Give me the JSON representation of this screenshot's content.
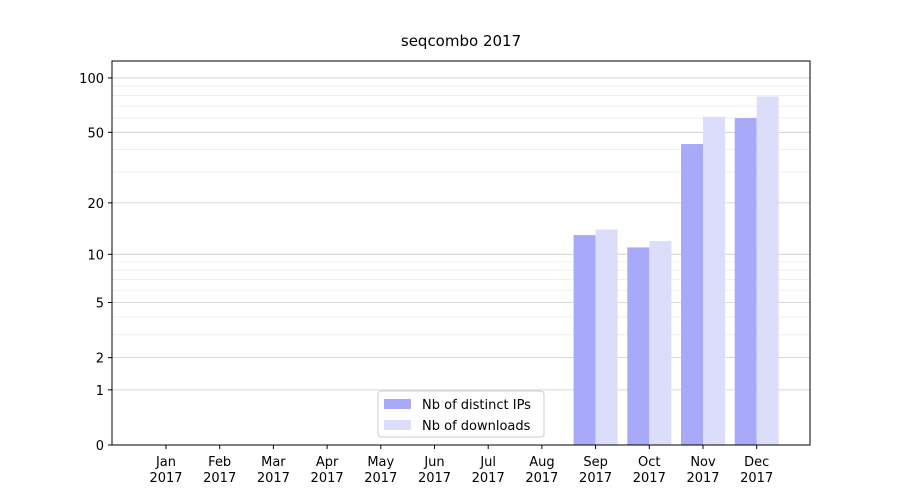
{
  "chart_data": {
    "type": "bar",
    "title": "seqcombo 2017",
    "categories": [
      "Jan\n2017",
      "Feb\n2017",
      "Mar\n2017",
      "Apr\n2017",
      "May\n2017",
      "Jun\n2017",
      "Jul\n2017",
      "Aug\n2017",
      "Sep\n2017",
      "Oct\n2017",
      "Nov\n2017",
      "Dec\n2017"
    ],
    "series": [
      {
        "name": "Nb of distinct IPs",
        "color": "#a9a9f9",
        "values": [
          0,
          0,
          0,
          0,
          0,
          0,
          0,
          0,
          13,
          11,
          43,
          60
        ]
      },
      {
        "name": "Nb of downloads",
        "color": "#dcdcfb",
        "values": [
          0,
          0,
          0,
          0,
          0,
          0,
          0,
          0,
          14,
          12,
          61,
          79
        ]
      }
    ],
    "yscale": "log1p",
    "ylim": [
      0,
      124
    ],
    "yticks": [
      0,
      1,
      2,
      5,
      10,
      20,
      50,
      100
    ],
    "yminorticks": [
      3,
      4,
      6,
      7,
      8,
      9,
      30,
      40,
      60,
      70,
      80,
      90
    ],
    "grid": true,
    "legend": "lower center"
  }
}
